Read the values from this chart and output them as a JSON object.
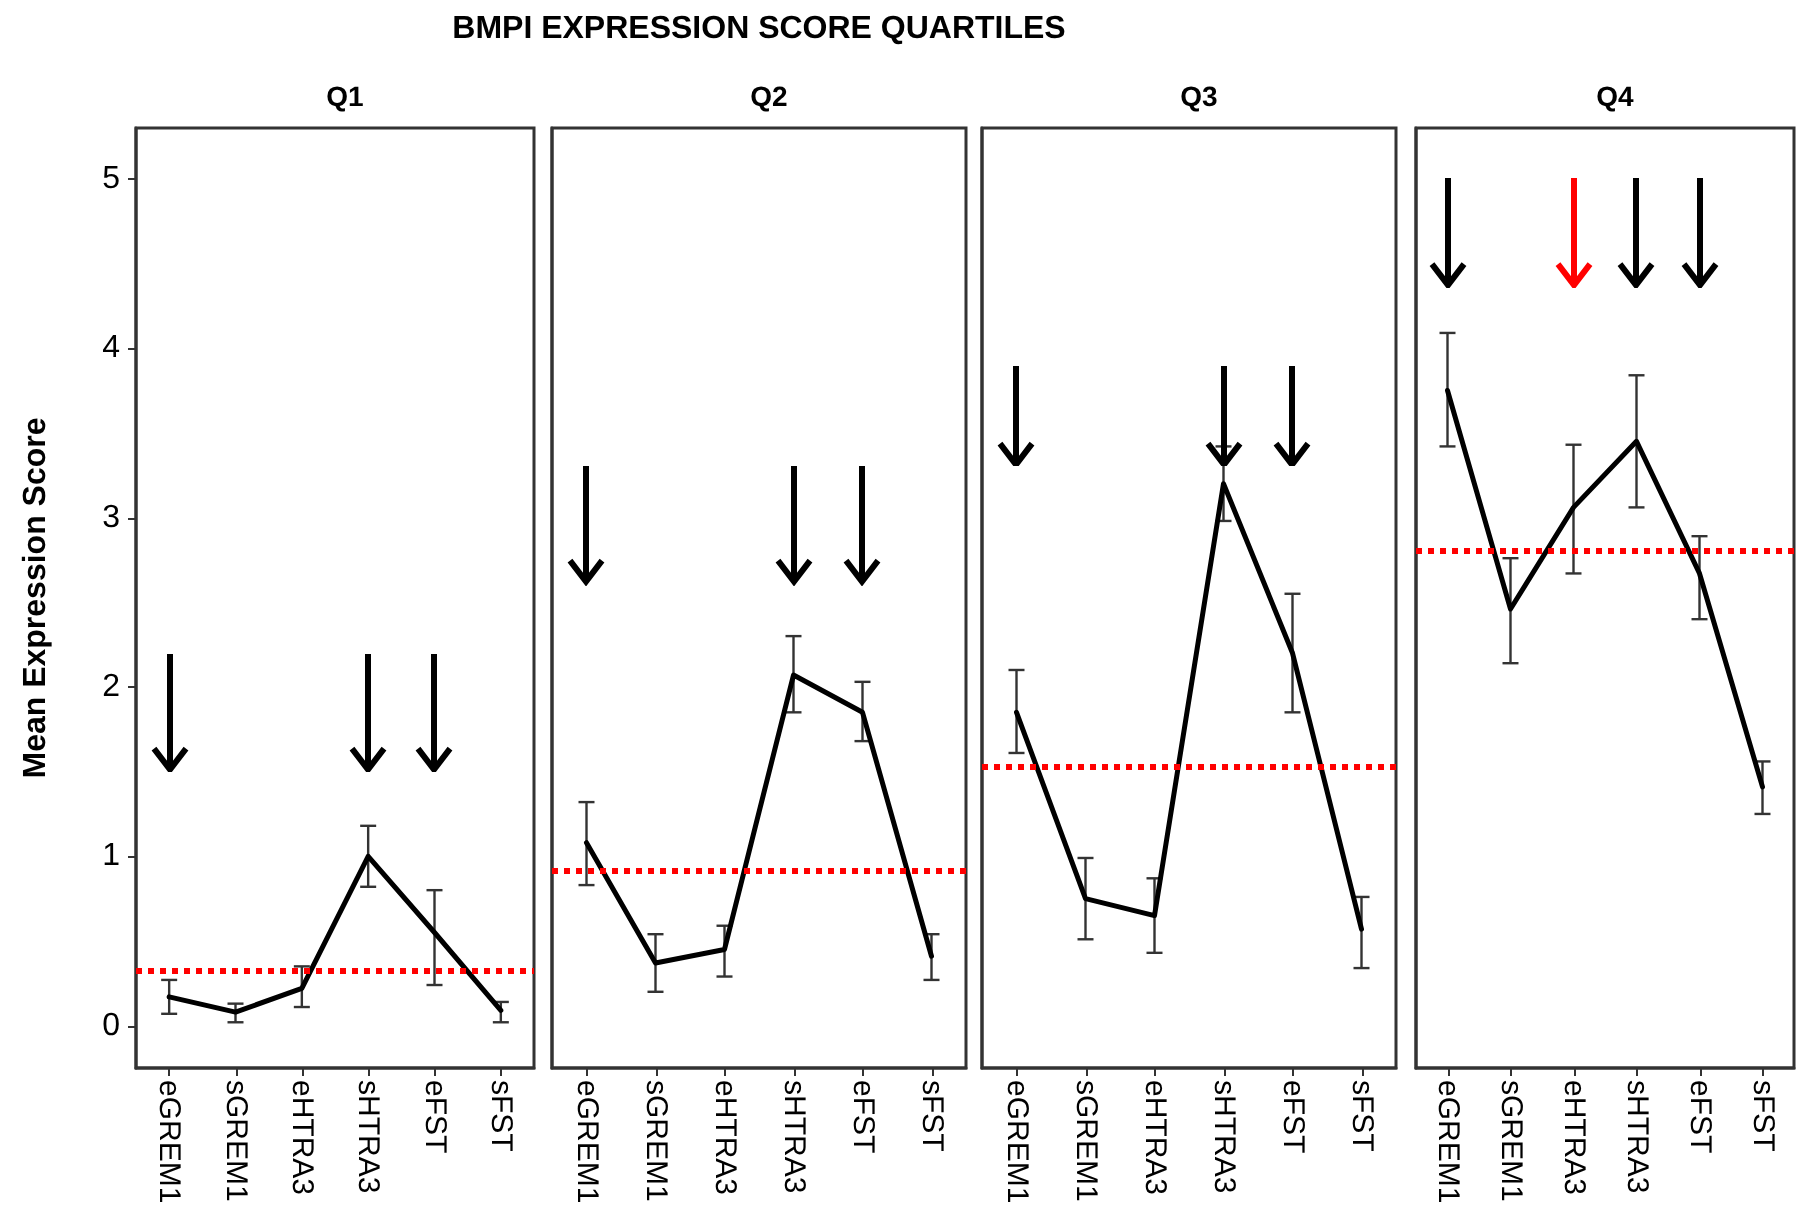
{
  "chart_data": [
    {
      "type": "line",
      "title": "Q1",
      "ylabel": "Mean Expression Score",
      "categories": [
        "eGREM1",
        "sGREM1",
        "eHTRA3",
        "sHTRA3",
        "eFST",
        "sFST"
      ],
      "series": [
        {
          "color": "#000000",
          "values": [
            0.17,
            0.08,
            0.22,
            1.0,
            0.55,
            0.09
          ],
          "errors": [
            [
              0.07,
              0.27
            ],
            [
              0.02,
              0.13
            ],
            [
              0.11,
              0.35
            ],
            [
              0.82,
              1.18
            ],
            [
              0.24,
              0.8
            ],
            [
              0.02,
              0.14
            ]
          ]
        }
      ],
      "ylim": [
        -0.25,
        5.3
      ],
      "yticks": [
        0,
        1,
        2,
        3,
        4,
        5
      ],
      "marker": "none",
      "line_style": "solid",
      "ref_lines": [
        {
          "axis": "y",
          "value": 0.33,
          "color": "#ff0000",
          "line_style": "dotted"
        }
      ]
    },
    {
      "type": "line",
      "title": "BMPI EXPRESSION SCORE QUARTILES",
      "subtitle": "Q2",
      "categories": [
        "eGREM1",
        "sGREM1",
        "eHTRA3",
        "sHTRA3",
        "eFST",
        "sFST"
      ],
      "series": [
        {
          "color": "#000000",
          "values": [
            1.08,
            0.37,
            0.45,
            2.07,
            1.85,
            0.41
          ],
          "errors": [
            [
              0.83,
              1.32
            ],
            [
              0.2,
              0.54
            ],
            [
              0.29,
              0.59
            ],
            [
              1.85,
              2.3
            ],
            [
              1.68,
              2.03
            ],
            [
              0.27,
              0.54
            ]
          ]
        }
      ],
      "ylim": [
        -0.25,
        5.3
      ],
      "yticks": [
        0,
        1,
        2,
        3,
        4,
        5
      ],
      "tick_labels": "x",
      "marker": "none",
      "line_style": "solid",
      "ref_lines": [
        {
          "axis": "y",
          "value": 0.92,
          "color": "#ff0000",
          "line_style": "dotted"
        }
      ]
    },
    {
      "type": "line",
      "title": "Q3",
      "categories": [
        "eGREM1",
        "sGREM1",
        "eHTRA3",
        "sHTRA3",
        "eFST",
        "sFST"
      ],
      "series": [
        {
          "color": "#000000",
          "values": [
            1.85,
            0.75,
            0.65,
            3.2,
            2.2,
            0.57
          ],
          "errors": [
            [
              1.61,
              2.1
            ],
            [
              0.51,
              0.99
            ],
            [
              0.43,
              0.87
            ],
            [
              2.98,
              3.42
            ],
            [
              1.85,
              2.55
            ],
            [
              0.34,
              0.76
            ]
          ]
        }
      ],
      "ylim": [
        -0.25,
        5.3
      ],
      "yticks": [
        0,
        1,
        2,
        3,
        4,
        5
      ],
      "tick_labels": "x",
      "marker": "none",
      "line_style": "solid",
      "ref_lines": [
        {
          "axis": "y",
          "value": 1.53,
          "color": "#ff0000",
          "line_style": "dotted"
        }
      ]
    },
    {
      "type": "line",
      "title": "Q4",
      "categories": [
        "eGREM1",
        "sGREM1",
        "eHTRA3",
        "sHTRA3",
        "eFST",
        "sFST"
      ],
      "series": [
        {
          "color": "#000000",
          "values": [
            3.75,
            2.46,
            3.06,
            3.45,
            2.67,
            1.41
          ],
          "errors": [
            [
              3.42,
              4.09
            ],
            [
              2.14,
              2.76
            ],
            [
              2.67,
              3.43
            ],
            [
              3.06,
              3.84
            ],
            [
              2.4,
              2.89
            ],
            [
              1.25,
              1.56
            ]
          ]
        }
      ],
      "ylim": [
        -0.25,
        5.3
      ],
      "yticks": [
        0,
        1,
        2,
        3,
        4,
        5
      ],
      "tick_labels": "x",
      "marker": "none",
      "line_style": "solid",
      "ref_lines": [
        {
          "axis": "y",
          "value": 2.81,
          "color": "#ff0000",
          "line_style": "dotted"
        }
      ]
    }
  ]
}
